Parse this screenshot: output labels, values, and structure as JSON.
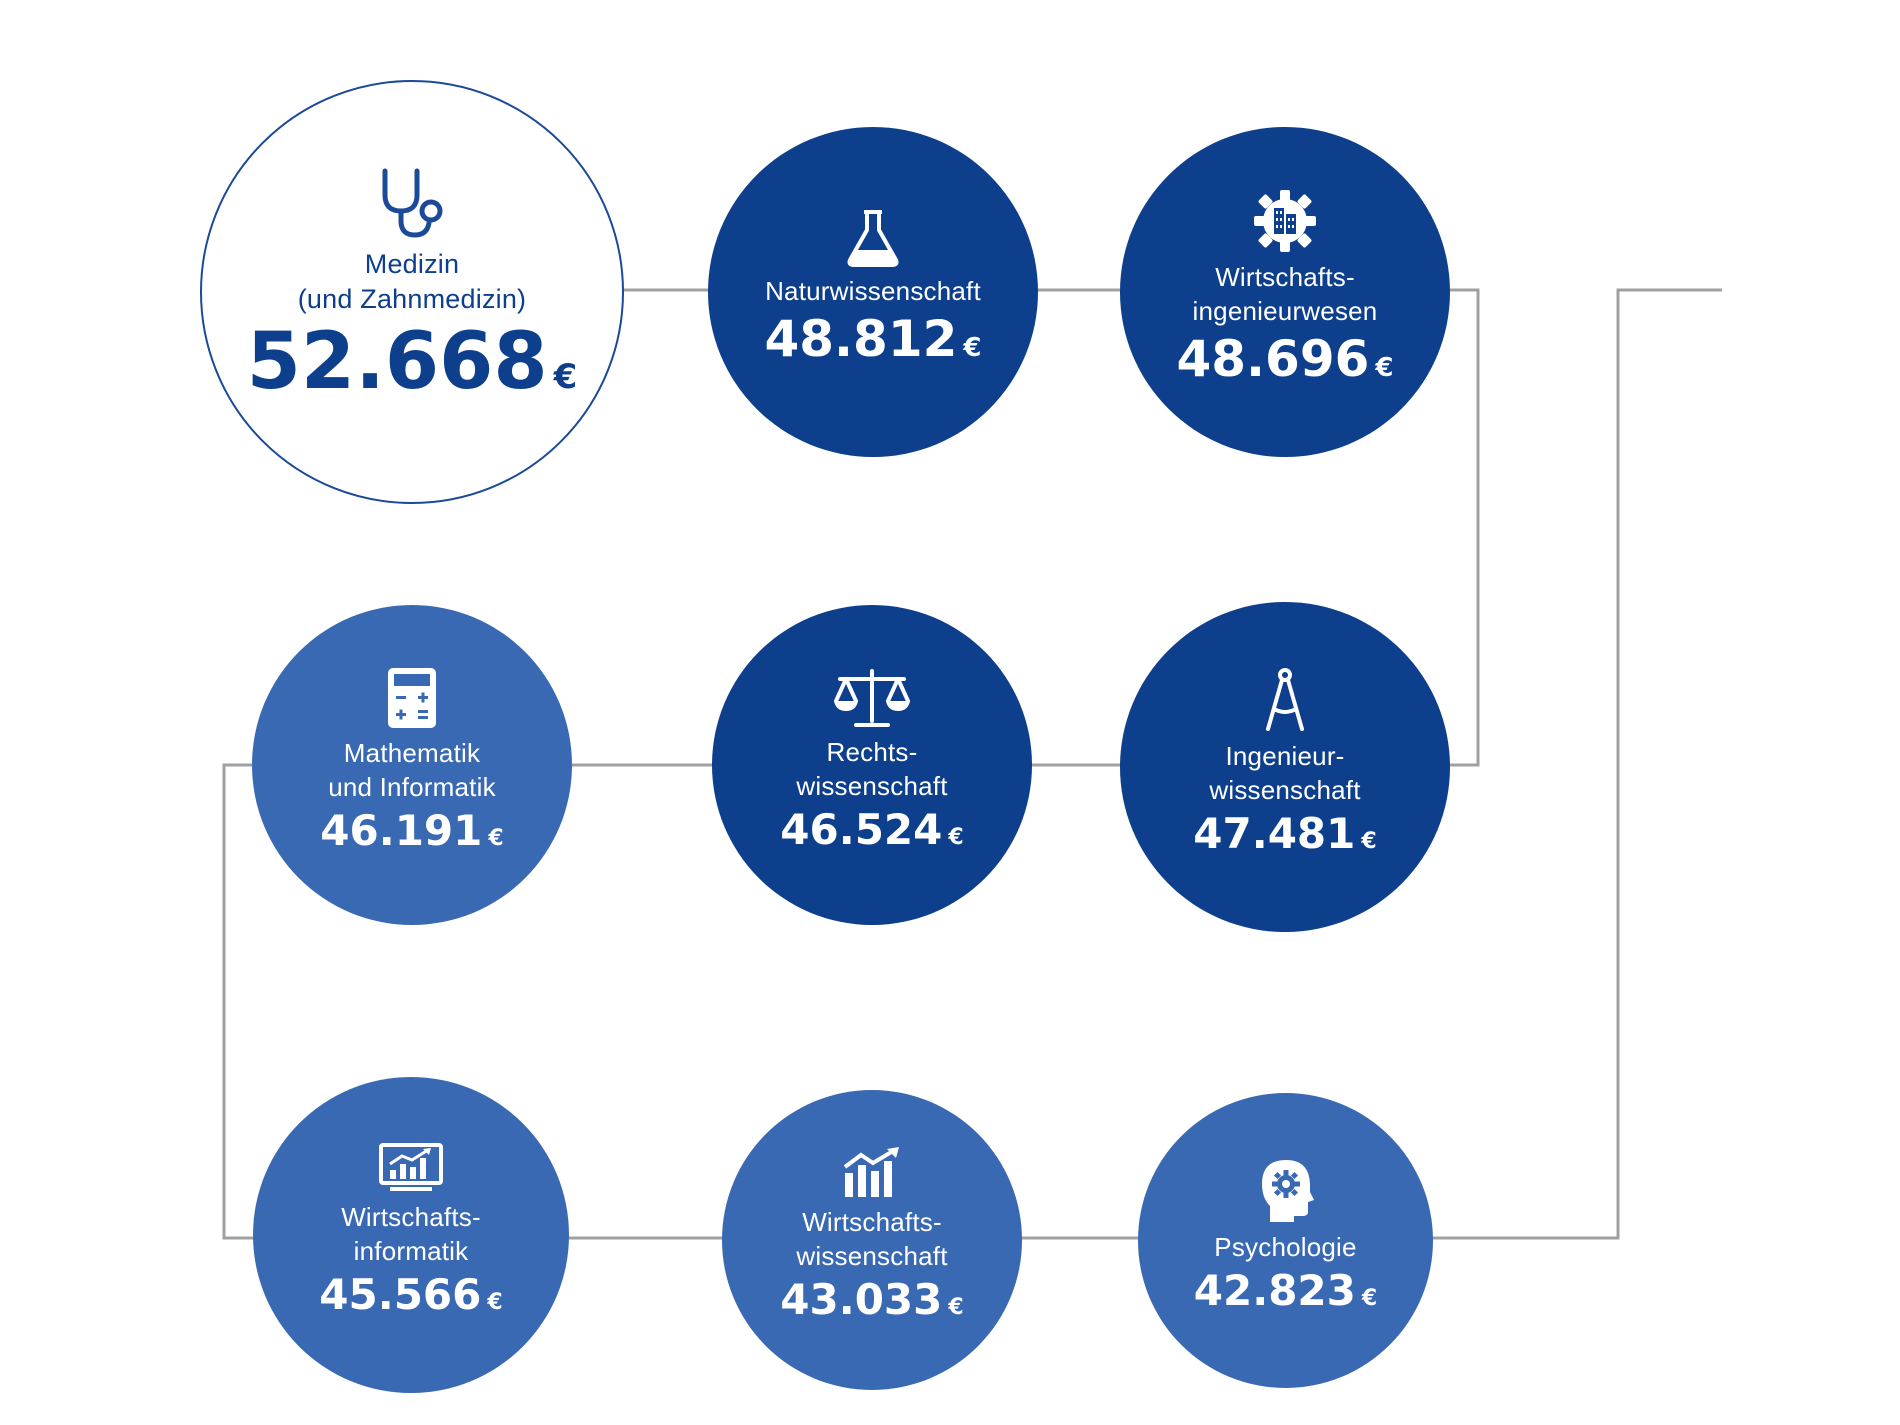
{
  "colors": {
    "dark": "#0d3f8c",
    "light": "#3a69b4",
    "outline": "#1b4a98",
    "connector": "#a0a0a0"
  },
  "currency": "€",
  "nodes": [
    {
      "key": "medizin",
      "label": "Medizin\n(und Zahnmedizin)",
      "value": "52.668",
      "icon": "stethoscope-icon",
      "style": "outline"
    },
    {
      "key": "naturwissenschaft",
      "label": "Naturwissenschaft",
      "value": "48.812",
      "icon": "flask-icon",
      "style": "dark"
    },
    {
      "key": "wirtschaftsingenieurwesen",
      "label": "Wirtschafts-\ningenieurwesen",
      "value": "48.696",
      "icon": "gear-building-icon",
      "style": "dark"
    },
    {
      "key": "ingenieurwissenschaft",
      "label": "Ingenieur-\nwissenschaft",
      "value": "47.481",
      "icon": "compass-icon",
      "style": "dark"
    },
    {
      "key": "rechtswissenschaft",
      "label": "Rechts-\nwissenschaft",
      "value": "46.524",
      "icon": "scales-icon",
      "style": "dark"
    },
    {
      "key": "mathematik",
      "label": "Mathematik\nund Informatik",
      "value": "46.191",
      "icon": "calculator-icon",
      "style": "light"
    },
    {
      "key": "wirtschaftsinformatik",
      "label": "Wirtschafts-\ninformatik",
      "value": "45.566",
      "icon": "monitor-chart-icon",
      "style": "light"
    },
    {
      "key": "wirtschaftswissenschaft",
      "label": "Wirtschafts-\nwissenschaft",
      "value": "43.033",
      "icon": "bar-chart-icon",
      "style": "light"
    },
    {
      "key": "psychologie",
      "label": "Psychologie",
      "value": "42.823",
      "icon": "head-gear-icon",
      "style": "light"
    }
  ]
}
